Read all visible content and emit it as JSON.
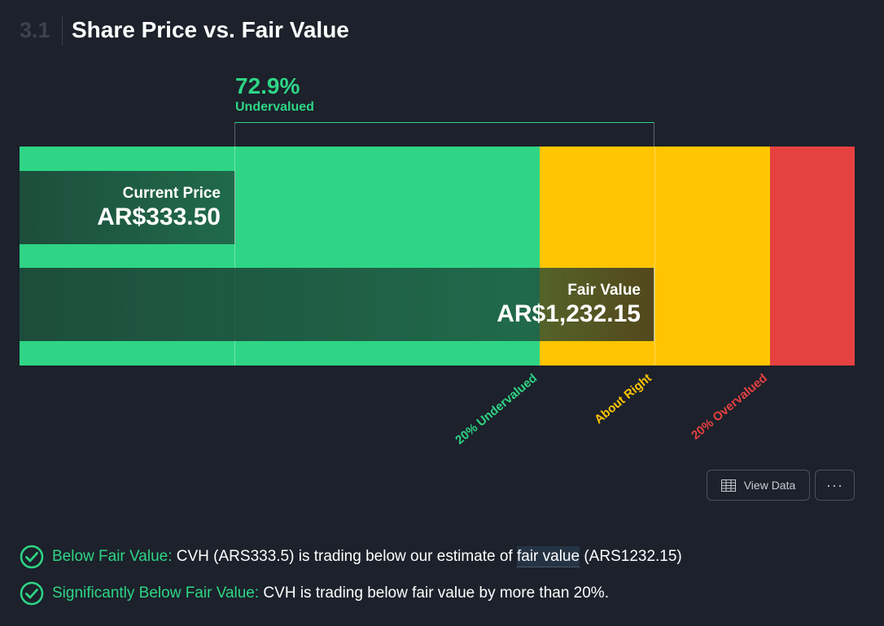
{
  "header": {
    "section_number": "3.1",
    "title": "Share Price vs. Fair Value"
  },
  "chart_data": {
    "type": "bar",
    "title": "Share Price vs. Fair Value",
    "current_price": {
      "label": "Current Price",
      "display": "AR$333.50",
      "value": 333.5
    },
    "fair_value": {
      "label": "Fair Value",
      "display": "AR$1,232.15",
      "value": 1232.15
    },
    "difference": {
      "percent": "72.9%",
      "label": "Undervalued"
    },
    "zones": [
      {
        "label": "20% Undervalued",
        "color": "#2ed585"
      },
      {
        "label": "About Right",
        "color": "#ffc502"
      },
      {
        "label": "20% Overvalued",
        "color": "#e64141"
      }
    ]
  },
  "actions": {
    "view_data": "View Data",
    "more": "···"
  },
  "checks": [
    {
      "prefix": "Below Fair Value:",
      "text_before": " CVH (ARS333.5) is trading below our estimate of ",
      "link": "fair value",
      "text_after": " (ARS1232.15)"
    },
    {
      "prefix": "Significantly Below Fair Value:",
      "text": " CVH is trading below fair value by more than 20%."
    }
  ]
}
